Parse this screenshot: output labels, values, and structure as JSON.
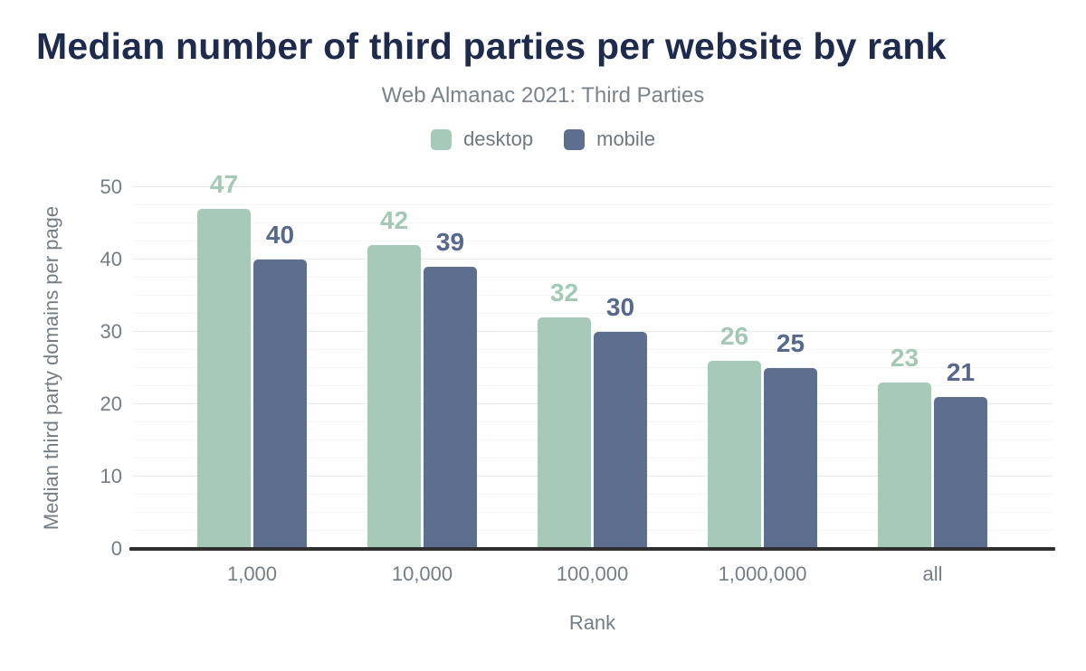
{
  "title": "Median number of third parties per website by rank",
  "subtitle": "Web Almanac 2021: Third Parties",
  "x_axis_title": "Rank",
  "y_axis_title": "Median third party domains per page",
  "colors": {
    "title_text": "#1e2b4d",
    "muted_text": "#757d84",
    "desktop_bar": "#a6c9b8",
    "desktop_label": "#a3c8b6",
    "mobile_bar": "#5e6e8e",
    "mobile_label": "#57688d",
    "axis_line": "#303030"
  },
  "chart_data": {
    "type": "bar",
    "title": "Median number of third parties per website by rank",
    "subtitle": "Web Almanac 2021: Third Parties",
    "xlabel": "Rank",
    "ylabel": "Median third party domains per page",
    "categories": [
      "1,000",
      "10,000",
      "100,000",
      "1,000,000",
      "all"
    ],
    "series": [
      {
        "name": "desktop",
        "color": "#a6c9b8",
        "label_color": "#a3c8b6",
        "values": [
          47,
          42,
          32,
          26,
          23
        ]
      },
      {
        "name": "mobile",
        "color": "#5e6e8e",
        "label_color": "#57688d",
        "values": [
          40,
          39,
          30,
          25,
          21
        ]
      }
    ],
    "ylim": [
      0,
      50
    ],
    "yticks": [
      0,
      10,
      20,
      30,
      40,
      50
    ],
    "grid": "horizontal; major every 10, minor every 2.5",
    "legend_position": "top-center",
    "data_labels": "above bars"
  }
}
